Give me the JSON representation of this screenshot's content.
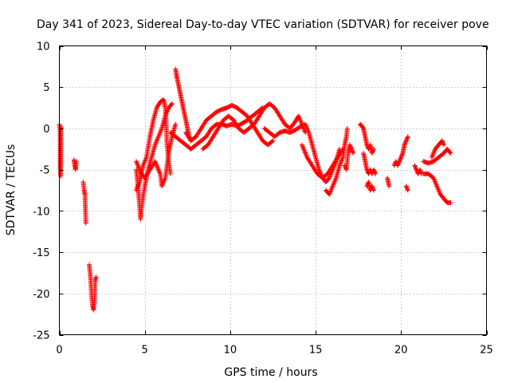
{
  "chart_data": {
    "type": "scatter",
    "title": "Day 341 of 2023, Sidereal Day-to-day VTEC variation (SDTVAR) for receiver pove",
    "xlabel": "GPS time / hours",
    "ylabel": "SDTVAR / TECUs",
    "xlim": [
      0,
      25
    ],
    "ylim": [
      -25,
      10
    ],
    "xticks": [
      0,
      5,
      10,
      15,
      20,
      25
    ],
    "yticks": [
      -25,
      -20,
      -15,
      -10,
      -5,
      0,
      5,
      10
    ],
    "xtick_labels": [
      "0",
      "5",
      "10",
      "15",
      "20",
      "25"
    ],
    "ytick_labels": [
      "-25",
      "-20",
      "-15",
      "-10",
      "-5",
      "0",
      "5",
      "10"
    ],
    "grid": true,
    "marker": "plus",
    "color": "#ff0000",
    "series": [
      {
        "name": "pove",
        "segments": [
          [
            [
              0.0,
              0.5
            ],
            [
              0.05,
              -0.5
            ],
            [
              0.05,
              -2.0
            ],
            [
              0.05,
              -3.5
            ],
            [
              0.05,
              -5.0
            ],
            [
              0.08,
              -5.8
            ],
            [
              0.1,
              0.2
            ]
          ],
          [
            [
              0.85,
              -3.8
            ],
            [
              0.9,
              -4.5
            ],
            [
              0.95,
              -5.0
            ],
            [
              1.0,
              -4.0
            ]
          ],
          [
            [
              1.4,
              -6.5
            ],
            [
              1.45,
              -7.5
            ],
            [
              1.5,
              -8.0
            ],
            [
              1.55,
              -11.5
            ]
          ],
          [
            [
              1.75,
              -16.5
            ],
            [
              1.8,
              -17.5
            ],
            [
              1.85,
              -19.0
            ],
            [
              1.9,
              -20.5
            ],
            [
              1.95,
              -21.5
            ],
            [
              2.0,
              -22.0
            ],
            [
              2.05,
              -21.0
            ],
            [
              2.1,
              -18.5
            ],
            [
              2.15,
              -18.0
            ]
          ],
          [
            [
              4.5,
              -5.0
            ],
            [
              4.6,
              -7.0
            ],
            [
              4.7,
              -9.5
            ],
            [
              4.75,
              -11.0
            ],
            [
              4.85,
              -9.0
            ],
            [
              5.0,
              -7.0
            ],
            [
              5.2,
              -5.0
            ],
            [
              5.4,
              -3.5
            ],
            [
              5.6,
              -2.0
            ],
            [
              5.8,
              -1.0
            ],
            [
              6.0,
              0.0
            ],
            [
              6.2,
              1.5
            ],
            [
              6.4,
              2.5
            ],
            [
              6.6,
              3.0
            ]
          ],
          [
            [
              4.5,
              -7.5
            ],
            [
              4.7,
              -6.5
            ],
            [
              4.9,
              -4.5
            ],
            [
              5.1,
              -3.5
            ],
            [
              5.3,
              -1.0
            ],
            [
              5.5,
              1.0
            ],
            [
              5.7,
              2.5
            ],
            [
              5.9,
              3.2
            ],
            [
              6.1,
              3.5
            ],
            [
              6.2,
              2.5
            ],
            [
              6.25,
              0.5
            ],
            [
              6.3,
              -2.0
            ],
            [
              6.4,
              -4.0
            ],
            [
              6.5,
              -5.5
            ]
          ],
          [
            [
              4.5,
              -4.0
            ],
            [
              4.8,
              -5.5
            ],
            [
              5.0,
              -6.0
            ],
            [
              5.3,
              -5.0
            ],
            [
              5.6,
              -4.0
            ],
            [
              5.9,
              -5.5
            ],
            [
              6.0,
              -7.0
            ],
            [
              6.2,
              -6.0
            ],
            [
              6.4,
              -3.0
            ],
            [
              6.6,
              -1.0
            ],
            [
              6.8,
              0.5
            ]
          ],
          [
            [
              6.8,
              7.2
            ],
            [
              6.85,
              6.5
            ],
            [
              6.9,
              6.0
            ],
            [
              7.0,
              5.0
            ],
            [
              7.1,
              4.0
            ],
            [
              7.2,
              3.0
            ],
            [
              7.3,
              2.0
            ],
            [
              7.4,
              1.0
            ],
            [
              7.5,
              0.0
            ],
            [
              7.6,
              -1.0
            ],
            [
              7.7,
              -1.5
            ]
          ],
          [
            [
              6.5,
              -0.5
            ],
            [
              6.8,
              -1.0
            ],
            [
              7.1,
              -1.5
            ],
            [
              7.4,
              -2.0
            ],
            [
              7.7,
              -2.5
            ],
            [
              8.0,
              -2.0
            ],
            [
              8.3,
              -1.5
            ],
            [
              8.6,
              -1.0
            ],
            [
              8.9,
              0.0
            ],
            [
              9.2,
              0.5
            ],
            [
              9.5,
              0.5
            ],
            [
              9.8,
              0.3
            ],
            [
              10.1,
              0.5
            ],
            [
              10.4,
              0.3
            ],
            [
              10.7,
              0.6
            ],
            [
              11.0,
              1.0
            ],
            [
              11.3,
              1.5
            ],
            [
              11.6,
              2.0
            ],
            [
              11.9,
              2.5
            ]
          ],
          [
            [
              7.4,
              -0.5
            ],
            [
              7.7,
              -1.5
            ],
            [
              8.0,
              -1.0
            ],
            [
              8.3,
              0.0
            ],
            [
              8.6,
              1.0
            ],
            [
              8.9,
              1.5
            ],
            [
              9.2,
              2.0
            ],
            [
              9.5,
              2.3
            ],
            [
              9.8,
              2.5
            ],
            [
              10.1,
              2.8
            ],
            [
              10.4,
              2.5
            ],
            [
              10.7,
              2.0
            ],
            [
              11.0,
              1.5
            ],
            [
              11.3,
              0.5
            ],
            [
              11.6,
              -0.5
            ],
            [
              11.9,
              -1.5
            ],
            [
              12.2,
              -2.0
            ],
            [
              12.5,
              -1.5
            ]
          ],
          [
            [
              8.4,
              -2.5
            ],
            [
              8.7,
              -2.0
            ],
            [
              9.0,
              -1.0
            ],
            [
              9.3,
              0.0
            ],
            [
              9.6,
              1.0
            ],
            [
              9.9,
              1.5
            ],
            [
              10.2,
              1.0
            ],
            [
              10.5,
              0.0
            ],
            [
              10.8,
              -0.5
            ],
            [
              11.1,
              0.0
            ],
            [
              11.4,
              0.5
            ],
            [
              11.7,
              1.5
            ],
            [
              12.0,
              2.5
            ],
            [
              12.3,
              3.0
            ],
            [
              12.6,
              2.5
            ],
            [
              12.9,
              1.5
            ],
            [
              13.2,
              0.5
            ],
            [
              13.5,
              0.0
            ],
            [
              13.8,
              0.8
            ],
            [
              14.0,
              1.5
            ],
            [
              14.2,
              0.5
            ],
            [
              14.4,
              -0.5
            ]
          ],
          [
            [
              12.0,
              0.0
            ],
            [
              12.3,
              -0.5
            ],
            [
              12.6,
              -1.0
            ],
            [
              12.9,
              -0.5
            ],
            [
              13.2,
              -0.3
            ],
            [
              13.5,
              -0.5
            ],
            [
              13.8,
              -0.2
            ],
            [
              14.1,
              0.2
            ],
            [
              14.4,
              0.5
            ],
            [
              14.6,
              -0.5
            ],
            [
              14.8,
              -2.0
            ],
            [
              15.0,
              -3.5
            ],
            [
              15.2,
              -5.0
            ],
            [
              15.4,
              -6.0
            ],
            [
              15.6,
              -6.5
            ],
            [
              15.8,
              -6.0
            ],
            [
              16.0,
              -5.0
            ],
            [
              16.2,
              -4.0
            ],
            [
              16.4,
              -2.5
            ]
          ],
          [
            [
              14.2,
              -2.0
            ],
            [
              14.5,
              -3.5
            ],
            [
              14.8,
              -4.5
            ],
            [
              15.1,
              -5.5
            ],
            [
              15.4,
              -6.0
            ],
            [
              15.7,
              -5.5
            ],
            [
              16.0,
              -4.5
            ],
            [
              16.3,
              -3.5
            ],
            [
              16.6,
              -2.5
            ]
          ],
          [
            [
              15.6,
              -7.5
            ],
            [
              15.8,
              -8.0
            ],
            [
              16.0,
              -7.0
            ],
            [
              16.2,
              -6.0
            ],
            [
              16.4,
              -4.5
            ],
            [
              16.6,
              -3.5
            ],
            [
              16.7,
              -2.0
            ],
            [
              16.8,
              -1.0
            ],
            [
              16.85,
              0.0
            ]
          ],
          [
            [
              16.7,
              -4.5
            ],
            [
              16.8,
              -5.0
            ],
            [
              16.9,
              -3.0
            ],
            [
              17.0,
              -2.0
            ],
            [
              17.1,
              -2.5
            ],
            [
              17.2,
              -3.0
            ]
          ],
          [
            [
              17.6,
              0.5
            ],
            [
              17.7,
              0.3
            ],
            [
              17.8,
              0.0
            ],
            [
              17.9,
              -1.0
            ],
            [
              18.0,
              -2.0
            ],
            [
              18.1,
              -2.5
            ],
            [
              18.2,
              -2.0
            ],
            [
              18.3,
              -3.0
            ],
            [
              18.4,
              -2.5
            ]
          ],
          [
            [
              17.8,
              -3.0
            ],
            [
              17.9,
              -4.0
            ],
            [
              18.0,
              -5.0
            ],
            [
              18.1,
              -5.5
            ],
            [
              18.2,
              -5.0
            ],
            [
              18.3,
              -5.5
            ],
            [
              18.4,
              -5.0
            ],
            [
              18.5,
              -5.5
            ]
          ],
          [
            [
              18.0,
              -7.0
            ],
            [
              18.1,
              -6.5
            ],
            [
              18.2,
              -7.5
            ],
            [
              18.3,
              -7.0
            ],
            [
              18.4,
              -7.5
            ]
          ],
          [
            [
              19.2,
              -6.0
            ],
            [
              19.3,
              -7.0
            ]
          ],
          [
            [
              19.6,
              -4.5
            ],
            [
              19.7,
              -4.0
            ],
            [
              19.8,
              -4.5
            ],
            [
              19.9,
              -4.0
            ],
            [
              20.0,
              -3.5
            ],
            [
              20.1,
              -3.0
            ],
            [
              20.2,
              -2.0
            ],
            [
              20.3,
              -1.5
            ],
            [
              20.4,
              -1.0
            ]
          ],
          [
            [
              20.3,
              -7.0
            ],
            [
              20.4,
              -7.5
            ]
          ],
          [
            [
              20.8,
              -4.5
            ],
            [
              20.9,
              -5.0
            ],
            [
              21.0,
              -5.5
            ],
            [
              21.1,
              -5.0
            ],
            [
              21.2,
              -5.5
            ]
          ],
          [
            [
              21.3,
              -4.0
            ],
            [
              21.6,
              -4.2
            ],
            [
              21.9,
              -4.0
            ],
            [
              22.2,
              -3.5
            ],
            [
              22.5,
              -3.0
            ],
            [
              22.7,
              -2.5
            ],
            [
              22.9,
              -3.0
            ]
          ],
          [
            [
              21.3,
              -5.5
            ],
            [
              21.6,
              -5.5
            ],
            [
              21.9,
              -6.0
            ],
            [
              22.1,
              -7.0
            ],
            [
              22.3,
              -8.0
            ],
            [
              22.5,
              -8.5
            ],
            [
              22.7,
              -9.0
            ],
            [
              22.9,
              -9.0
            ]
          ],
          [
            [
              21.8,
              -3.5
            ],
            [
              22.0,
              -2.5
            ],
            [
              22.2,
              -2.0
            ],
            [
              22.4,
              -1.5
            ],
            [
              22.5,
              -2.0
            ]
          ]
        ]
      }
    ]
  }
}
